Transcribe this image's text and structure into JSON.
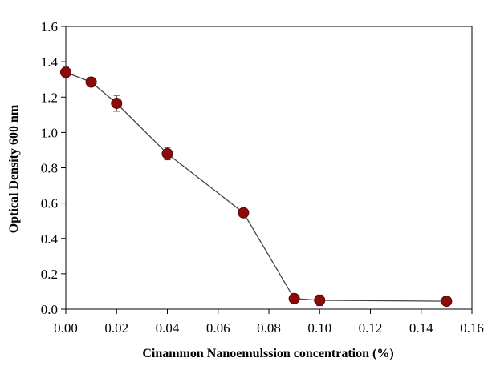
{
  "chart_data": {
    "type": "line",
    "title": "",
    "xlabel": "Cinammon Nanoemulssion concentration (%)",
    "ylabel": "Optical Density 600 nm",
    "xlim": [
      0.0,
      0.16
    ],
    "ylim": [
      0.0,
      1.6
    ],
    "x_ticks": [
      "0.00",
      "0.02",
      "0.04",
      "0.06",
      "0.08",
      "0.10",
      "0.12",
      "0.14",
      "0.16"
    ],
    "y_ticks": [
      "0.0",
      "0.2",
      "0.4",
      "0.6",
      "0.8",
      "1.0",
      "1.2",
      "1.4",
      "1.6"
    ],
    "grid": false,
    "marker_color": "#8b0a0a",
    "line_color": "#444444",
    "series": [
      {
        "x": [
          0.0,
          0.01,
          0.02,
          0.04,
          0.07,
          0.09,
          0.1,
          0.15
        ],
        "y": [
          1.34,
          1.285,
          1.165,
          0.88,
          0.545,
          0.06,
          0.05,
          0.045
        ],
        "error": [
          0.03,
          0.015,
          0.045,
          0.035,
          0.015,
          0.02,
          0.03,
          0.025
        ]
      }
    ]
  }
}
